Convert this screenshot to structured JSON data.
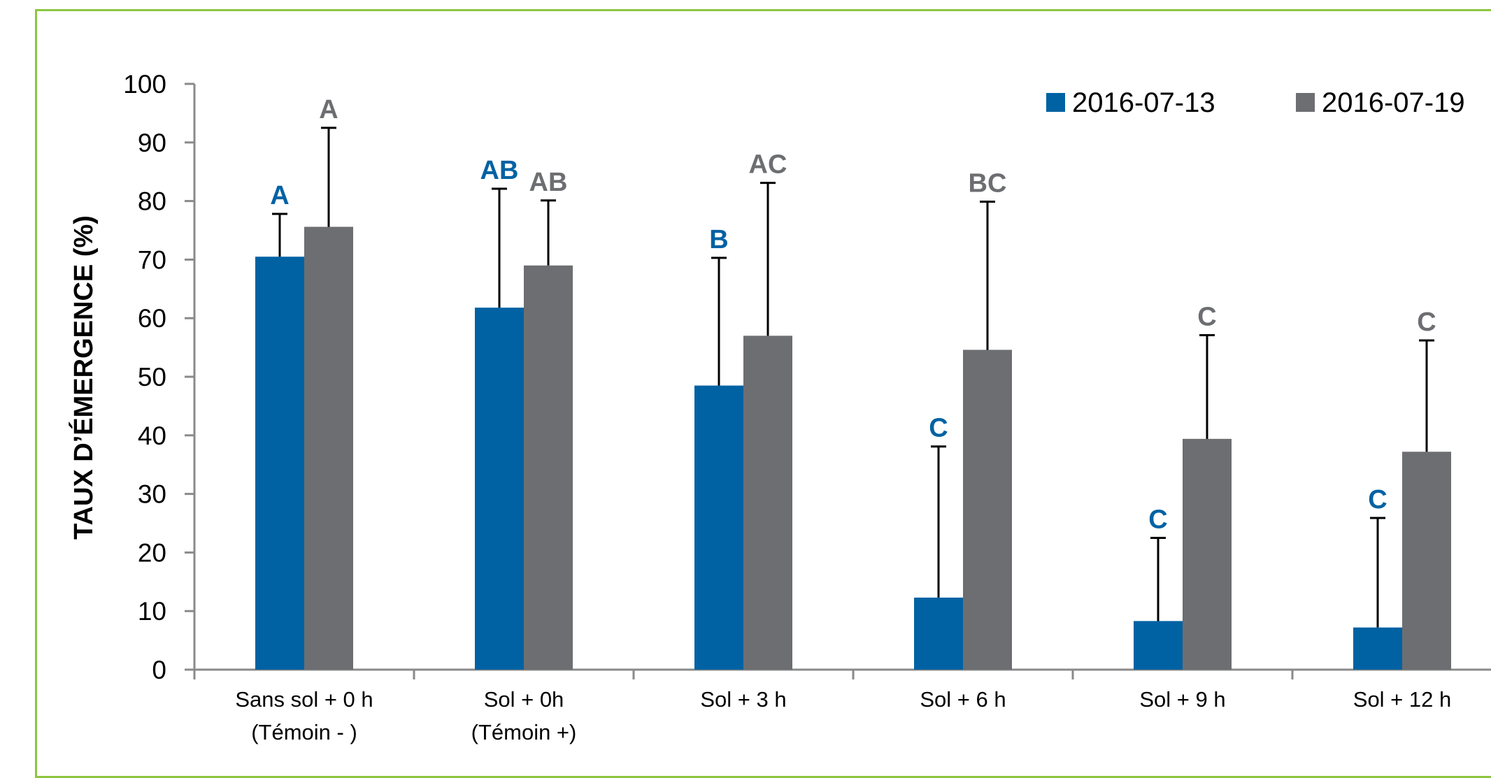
{
  "chart_data": {
    "type": "bar",
    "ylabel": "TAUX D’ÉMERGENCE (%)",
    "xlabel": "",
    "ylim": [
      0,
      100
    ],
    "yticks": [
      0,
      10,
      20,
      30,
      40,
      50,
      60,
      70,
      80,
      90,
      100
    ],
    "grid": false,
    "legend_position": "top-right",
    "categories": [
      [
        "Sans sol + 0 h",
        "(Témoin - )"
      ],
      [
        "Sol + 0h",
        "(Témoin +)"
      ],
      [
        "Sol + 3 h"
      ],
      [
        "Sol + 6 h"
      ],
      [
        "Sol + 9 h"
      ],
      [
        "Sol + 12 h"
      ]
    ],
    "series": [
      {
        "name": "2016-07-13",
        "color": "#0062a3",
        "values": [
          70.5,
          61.8,
          48.5,
          12.3,
          8.3,
          7.2
        ],
        "error_upper": [
          77.8,
          82.1,
          70.3,
          38.1,
          22.5,
          25.9
        ],
        "significance": [
          "A",
          "AB",
          "B",
          "C",
          "C",
          "C"
        ]
      },
      {
        "name": "2016-07-19",
        "color": "#6d6e71",
        "values": [
          75.6,
          69.0,
          57.0,
          54.6,
          39.4,
          37.2
        ],
        "error_upper": [
          92.5,
          80.1,
          83.1,
          79.9,
          57.1,
          56.2
        ],
        "significance": [
          "A",
          "AB",
          "AC",
          "BC",
          "C",
          "C"
        ]
      }
    ]
  }
}
